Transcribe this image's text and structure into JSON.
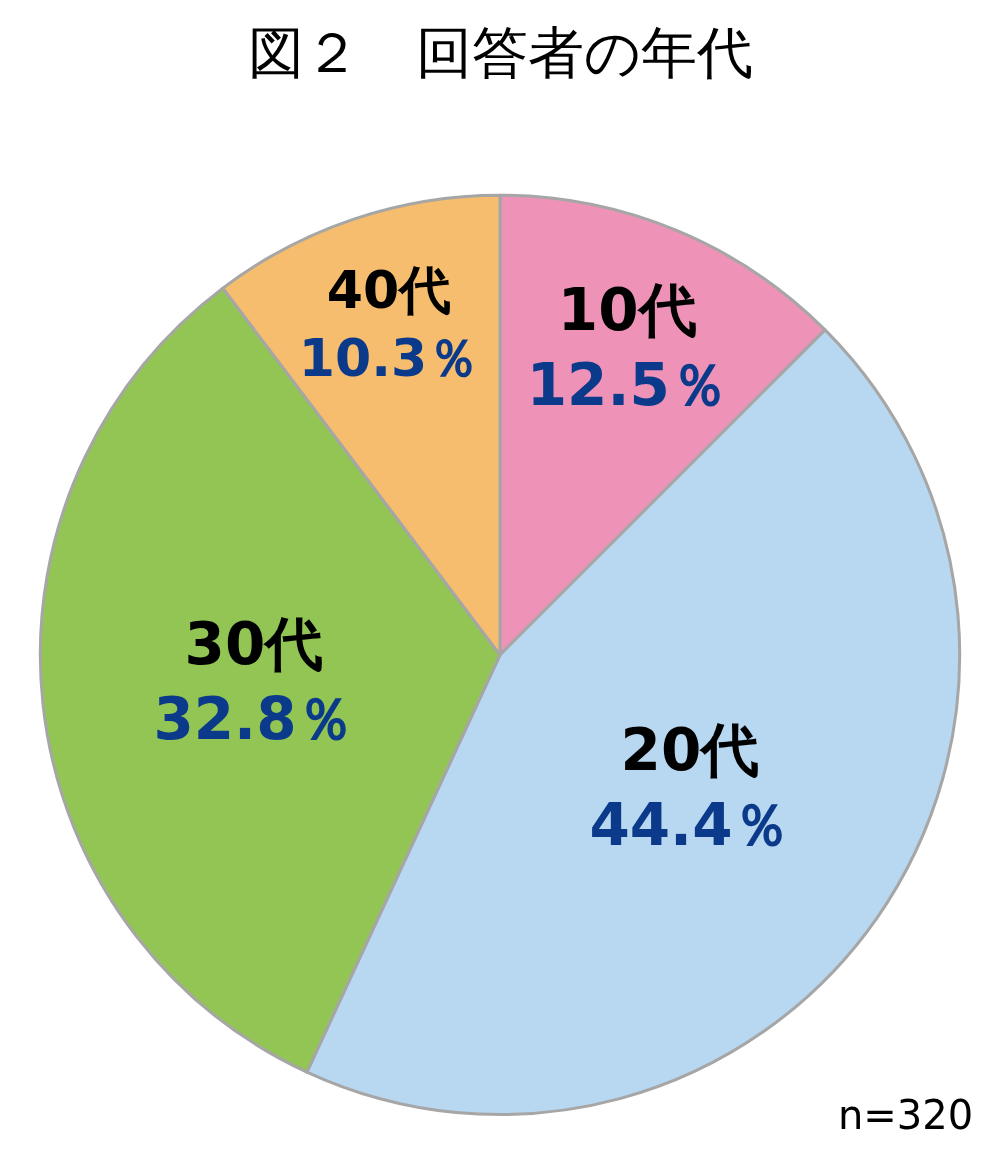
{
  "chart_data": {
    "type": "pie",
    "title": "図２　回答者の年代",
    "categories": [
      "10代",
      "20代",
      "30代",
      "40代"
    ],
    "values": [
      12.5,
      44.4,
      32.8,
      10.3
    ],
    "value_labels": [
      "12.5％",
      "44.4％",
      "32.8％",
      "10.3％"
    ],
    "colors": [
      "#ee93b7",
      "#b8d7f0",
      "#92c554",
      "#f5bd6d"
    ],
    "annotations": [
      "n=320"
    ],
    "legend": false
  }
}
